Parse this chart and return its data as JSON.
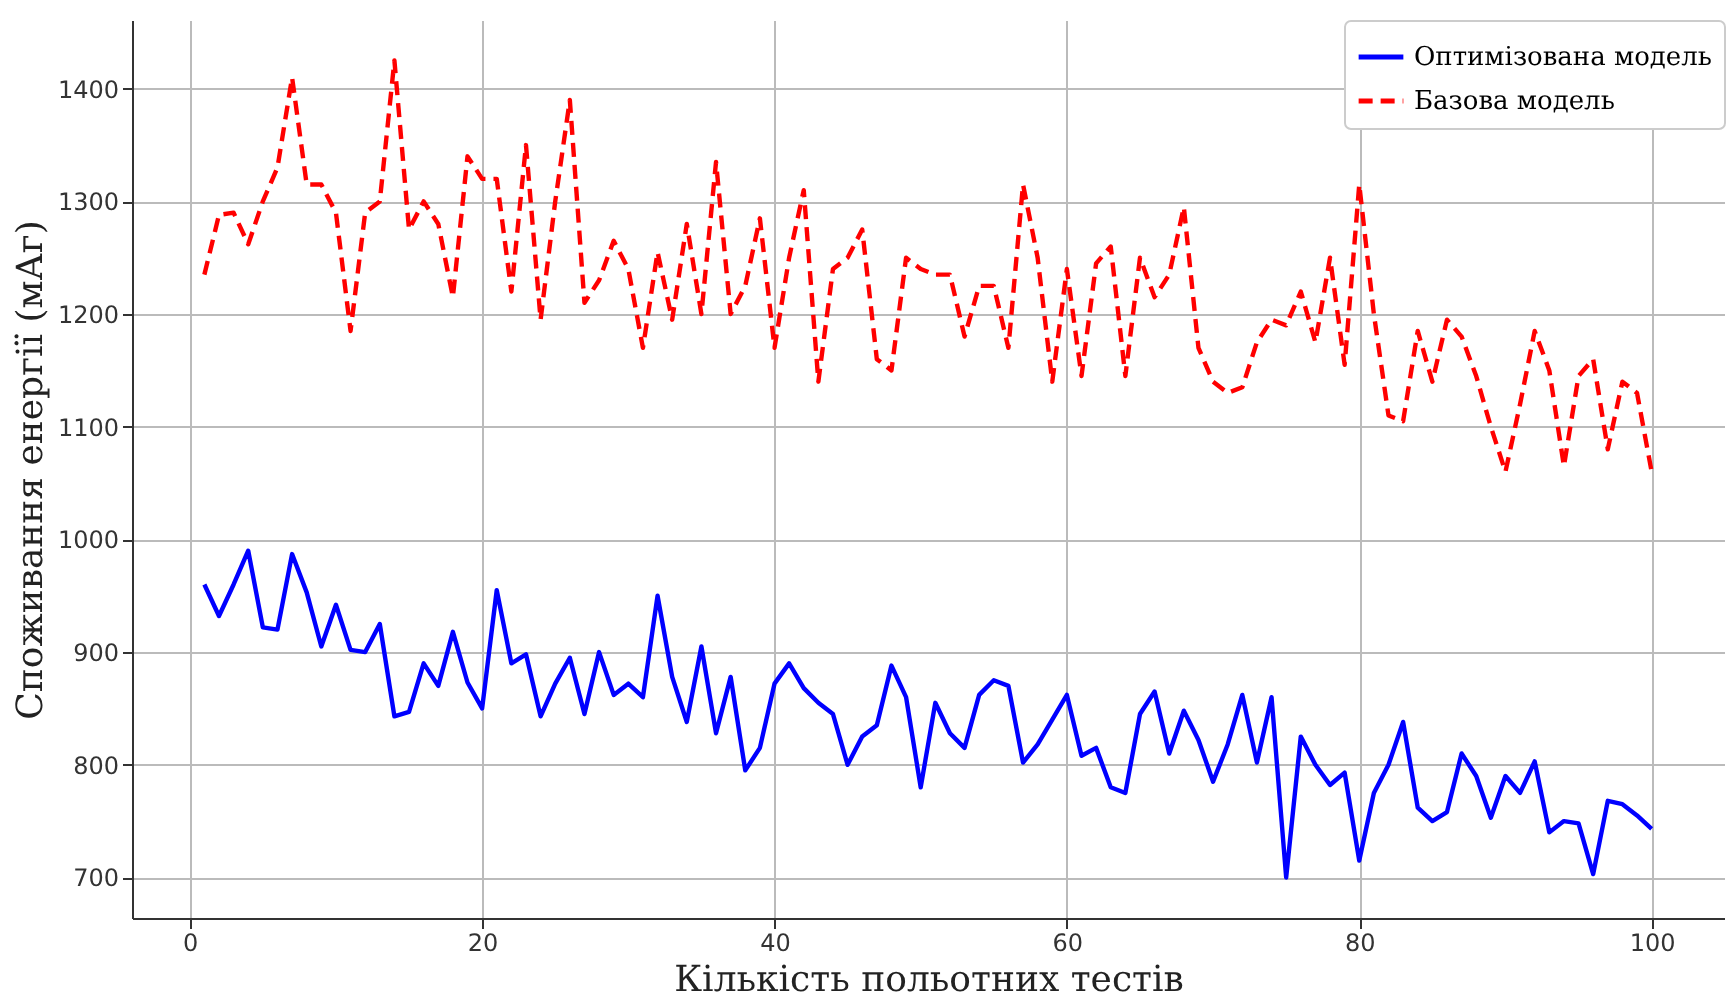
{
  "chart_data": {
    "type": "line",
    "xlabel": "Кількість польотних тестів",
    "ylabel": "Споживання енергії (мАг)",
    "x": [
      1,
      2,
      3,
      4,
      5,
      6,
      7,
      8,
      9,
      10,
      11,
      12,
      13,
      14,
      15,
      16,
      17,
      18,
      19,
      20,
      21,
      22,
      23,
      24,
      25,
      26,
      27,
      28,
      29,
      30,
      31,
      32,
      33,
      34,
      35,
      36,
      37,
      38,
      39,
      40,
      41,
      42,
      43,
      44,
      45,
      46,
      47,
      48,
      49,
      50,
      51,
      52,
      53,
      54,
      55,
      56,
      57,
      58,
      59,
      60,
      61,
      62,
      63,
      64,
      65,
      66,
      67,
      68,
      69,
      70,
      71,
      72,
      73,
      74,
      75,
      76,
      77,
      78,
      79,
      80,
      81,
      82,
      83,
      84,
      85,
      86,
      87,
      88,
      89,
      90,
      91,
      92,
      93,
      94,
      95,
      96,
      97,
      98,
      99,
      100
    ],
    "series": [
      {
        "name": "Оптимізована модель",
        "color": "#0000ff",
        "line_style": "solid",
        "values": [
          960,
          932,
          960,
          990,
          922,
          920,
          987,
          953,
          905,
          942,
          902,
          900,
          925,
          843,
          847,
          890,
          870,
          918,
          873,
          850,
          955,
          890,
          898,
          843,
          872,
          895,
          845,
          900,
          862,
          872,
          860,
          950,
          878,
          838,
          905,
          828,
          878,
          795,
          815,
          872,
          890,
          868,
          855,
          845,
          800,
          825,
          835,
          888,
          860,
          780,
          855,
          828,
          815,
          862,
          875,
          870,
          802,
          818,
          840,
          862,
          808,
          815,
          780,
          775,
          845,
          865,
          810,
          848,
          822,
          785,
          818,
          862,
          802,
          860,
          700,
          825,
          800,
          782,
          793,
          715,
          775,
          800,
          838,
          762,
          750,
          758,
          810,
          790,
          753,
          790,
          775,
          803,
          740,
          750,
          748,
          703,
          768,
          765,
          755,
          743
        ]
      },
      {
        "name": "Базова модель",
        "color": "#ff0000",
        "line_style": "dashed",
        "values": [
          1235,
          1288,
          1290,
          1262,
          1300,
          1330,
          1410,
          1315,
          1315,
          1290,
          1185,
          1290,
          1300,
          1425,
          1275,
          1300,
          1280,
          1215,
          1340,
          1320,
          1320,
          1220,
          1350,
          1195,
          1300,
          1390,
          1210,
          1230,
          1265,
          1240,
          1170,
          1255,
          1195,
          1280,
          1200,
          1335,
          1200,
          1225,
          1285,
          1170,
          1250,
          1310,
          1140,
          1240,
          1250,
          1275,
          1160,
          1150,
          1250,
          1240,
          1235,
          1235,
          1180,
          1225,
          1225,
          1170,
          1315,
          1250,
          1140,
          1240,
          1145,
          1245,
          1260,
          1145,
          1250,
          1215,
          1235,
          1295,
          1170,
          1140,
          1130,
          1135,
          1175,
          1195,
          1190,
          1220,
          1175,
          1250,
          1155,
          1315,
          1200,
          1110,
          1105,
          1185,
          1140,
          1195,
          1180,
          1145,
          1100,
          1060,
          1120,
          1185,
          1150,
          1065,
          1145,
          1160,
          1080,
          1140,
          1130,
          1060
        ]
      }
    ],
    "xlim": [
      -3.95,
      104.95
    ],
    "ylim": [
      664,
      1461
    ],
    "xticks": [
      0,
      20,
      40,
      60,
      80,
      100
    ],
    "yticks": [
      700,
      800,
      900,
      1000,
      1100,
      1200,
      1300,
      1400
    ],
    "grid": true,
    "legend": "top right"
  }
}
